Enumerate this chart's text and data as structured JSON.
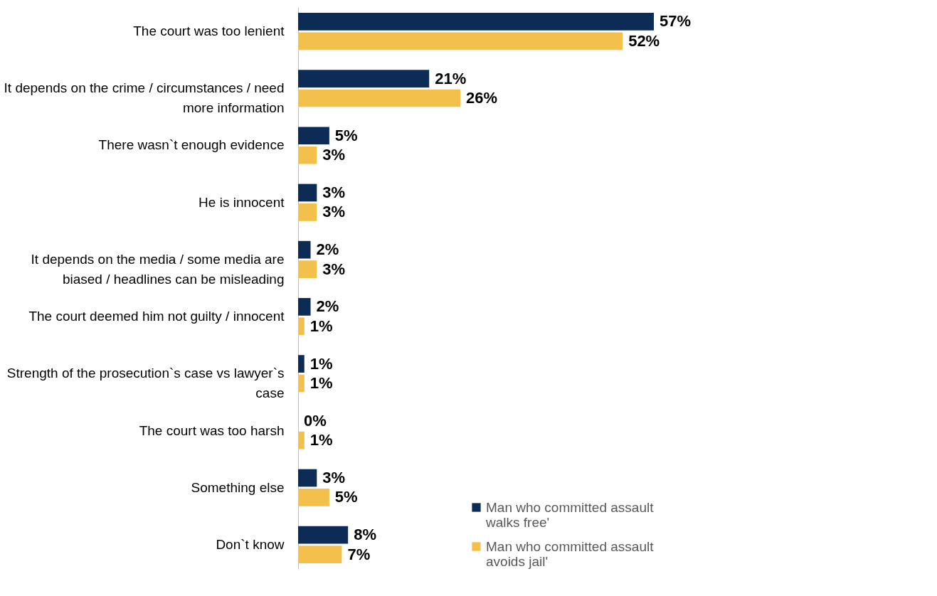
{
  "chart_data": {
    "type": "bar",
    "orientation": "horizontal",
    "legend": "bottom right",
    "grid": false,
    "categories": [
      "The court was too lenient",
      "It depends on the crime / circumstances / need more information",
      "There wasn`t enough evidence",
      "He is innocent",
      "It depends on the media / some media are biased / headlines can be misleading",
      "The court deemed him not guilty / innocent",
      "Strength of the prosecution`s case vs lawyer`s case",
      "The court was too harsh",
      "Something else",
      "Don`t know"
    ],
    "series": [
      {
        "name": "Man who committed assault walks free'",
        "color": "#0c2c56",
        "values": [
          57,
          21,
          5,
          3,
          2,
          2,
          1,
          0,
          3,
          8
        ],
        "value_labels": [
          "57%",
          "21%",
          "5%",
          "3%",
          "2%",
          "2%",
          "1%",
          "0%",
          "3%",
          "8%"
        ]
      },
      {
        "name": "Man who committed assault avoids jail'",
        "color": "#f2c04b",
        "values": [
          52,
          26,
          3,
          3,
          3,
          1,
          1,
          1,
          5,
          7
        ],
        "value_labels": [
          "52%",
          "26%",
          "3%",
          "3%",
          "3%",
          "1%",
          "1%",
          "1%",
          "5%",
          "7%"
        ]
      }
    ]
  }
}
